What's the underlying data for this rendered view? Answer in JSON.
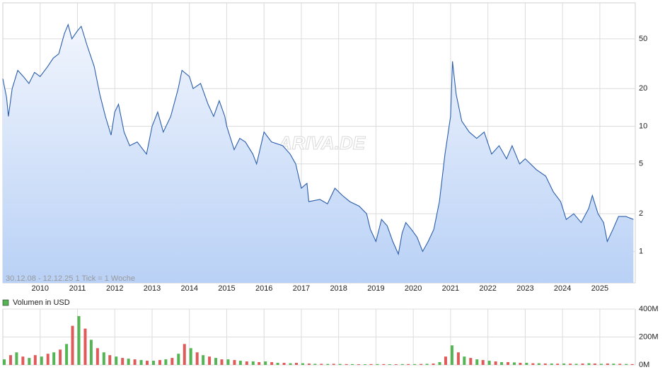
{
  "chart_data": [
    {
      "type": "area",
      "log_scale": true,
      "grid": true,
      "color": "#2b5eab",
      "fill_top": "#f1f5fd",
      "fill_bottom": "#b9d1f6",
      "footnote": "30.12.08 - 12.12.25   1 Tick = 1 Woche",
      "watermark": "ARIVA.DE",
      "xlim": [
        2009,
        2025.95
      ],
      "xticks": [
        2010,
        2011,
        2012,
        2013,
        2014,
        2015,
        2016,
        2017,
        2018,
        2019,
        2020,
        2021,
        2022,
        2023,
        2024,
        2025
      ],
      "ylim": [
        0.56,
        97
      ],
      "yticks": [
        1,
        2,
        5,
        10,
        20,
        50
      ],
      "x": [
        2009.0,
        2009.1,
        2009.15,
        2009.25,
        2009.4,
        2009.55,
        2009.7,
        2009.85,
        2010.0,
        2010.2,
        2010.35,
        2010.5,
        2010.65,
        2010.75,
        2010.85,
        2011.0,
        2011.1,
        2011.25,
        2011.45,
        2011.6,
        2011.75,
        2011.9,
        2012.0,
        2012.1,
        2012.25,
        2012.4,
        2012.6,
        2012.85,
        2013.0,
        2013.15,
        2013.3,
        2013.5,
        2013.7,
        2013.8,
        2014.0,
        2014.1,
        2014.3,
        2014.5,
        2014.65,
        2014.8,
        2014.95,
        2015.0,
        2015.2,
        2015.35,
        2015.5,
        2015.7,
        2015.8,
        2016.0,
        2016.2,
        2016.5,
        2016.7,
        2016.85,
        2017.0,
        2017.15,
        2017.2,
        2017.5,
        2017.7,
        2017.9,
        2018.1,
        2018.3,
        2018.55,
        2018.75,
        2018.85,
        2019.0,
        2019.15,
        2019.3,
        2019.45,
        2019.6,
        2019.7,
        2019.8,
        2019.95,
        2020.1,
        2020.25,
        2020.4,
        2020.55,
        2020.7,
        2020.85,
        2021.0,
        2021.05,
        2021.15,
        2021.3,
        2021.5,
        2021.7,
        2021.9,
        2022.1,
        2022.3,
        2022.5,
        2022.65,
        2022.85,
        2023.0,
        2023.3,
        2023.55,
        2023.75,
        2023.95,
        2024.1,
        2024.3,
        2024.5,
        2024.7,
        2024.8,
        2024.95,
        2025.1,
        2025.2,
        2025.35,
        2025.5,
        2025.7,
        2025.9
      ],
      "values": [
        24,
        17,
        12,
        20,
        28,
        25,
        22,
        27,
        25,
        30,
        35,
        38,
        55,
        65,
        50,
        58,
        63,
        45,
        30,
        18,
        12,
        8.5,
        13,
        15,
        9,
        7,
        7.5,
        6,
        10,
        13,
        9,
        12,
        20,
        28,
        25,
        20,
        22,
        15,
        12,
        16,
        12,
        10,
        6.5,
        8,
        7.5,
        6,
        5,
        9,
        7.5,
        7,
        6,
        5,
        3.2,
        3.5,
        2.5,
        2.6,
        2.4,
        3.2,
        2.8,
        2.5,
        2.3,
        2.0,
        1.5,
        1.2,
        1.8,
        1.6,
        1.2,
        0.95,
        1.4,
        1.7,
        1.5,
        1.3,
        1.0,
        1.2,
        1.5,
        2.5,
        6,
        12,
        33,
        18,
        11,
        9,
        8,
        9,
        6,
        7,
        5.5,
        7,
        5,
        5.5,
        4.5,
        4.0,
        3.0,
        2.5,
        1.8,
        2.0,
        1.7,
        2.2,
        2.8,
        2.0,
        1.7,
        1.2,
        1.5,
        1.9,
        1.9,
        1.8
      ]
    },
    {
      "type": "bar",
      "grid": true,
      "colors": [
        "#55b555",
        "#e05a5a"
      ],
      "xlim": [
        2009,
        2025.95
      ],
      "xticks": [
        2010,
        2011,
        2012,
        2013,
        2014,
        2015,
        2016,
        2017,
        2018,
        2019,
        2020,
        2021,
        2022,
        2023,
        2024,
        2025
      ],
      "ylim": [
        0,
        400
      ],
      "yticks": [
        {
          "value": 0,
          "label": "0M"
        },
        {
          "value": 200,
          "label": "200M"
        },
        {
          "value": 400,
          "label": "400M"
        }
      ],
      "x": [
        2009.0,
        2009.17,
        2009.33,
        2009.5,
        2009.67,
        2009.83,
        2010.0,
        2010.17,
        2010.33,
        2010.5,
        2010.67,
        2010.83,
        2011.0,
        2011.17,
        2011.33,
        2011.5,
        2011.67,
        2011.83,
        2012.0,
        2012.17,
        2012.33,
        2012.5,
        2012.67,
        2012.83,
        2013.0,
        2013.17,
        2013.33,
        2013.5,
        2013.67,
        2013.83,
        2014.0,
        2014.17,
        2014.33,
        2014.5,
        2014.67,
        2014.83,
        2015.0,
        2015.17,
        2015.33,
        2015.5,
        2015.67,
        2015.83,
        2016.0,
        2016.17,
        2016.33,
        2016.5,
        2016.67,
        2016.83,
        2017.0,
        2017.17,
        2017.33,
        2017.5,
        2017.67,
        2017.83,
        2018.0,
        2018.17,
        2018.33,
        2018.5,
        2018.67,
        2018.83,
        2019.0,
        2019.17,
        2019.33,
        2019.5,
        2019.67,
        2019.83,
        2020.0,
        2020.17,
        2020.33,
        2020.5,
        2020.67,
        2020.83,
        2021.0,
        2021.17,
        2021.33,
        2021.5,
        2021.67,
        2021.83,
        2022.0,
        2022.17,
        2022.33,
        2022.5,
        2022.67,
        2022.83,
        2023.0,
        2023.17,
        2023.33,
        2023.5,
        2023.67,
        2023.83,
        2024.0,
        2024.17,
        2024.33,
        2024.5,
        2024.67,
        2024.83,
        2025.0,
        2025.17,
        2025.33,
        2025.5,
        2025.67,
        2025.83
      ],
      "series": [
        {
          "name": "Volumen in USD",
          "color": "#55b555",
          "values": [
            40,
            70,
            90,
            60,
            50,
            70,
            60,
            80,
            90,
            110,
            150,
            280,
            350,
            260,
            180,
            120,
            90,
            70,
            60,
            50,
            45,
            40,
            35,
            30,
            30,
            35,
            40,
            50,
            80,
            150,
            120,
            90,
            70,
            60,
            50,
            40,
            40,
            35,
            30,
            25,
            25,
            20,
            25,
            20,
            15,
            15,
            12,
            15,
            12,
            10,
            8,
            8,
            7,
            8,
            7,
            6,
            6,
            5,
            5,
            6,
            6,
            6,
            5,
            5,
            6,
            6,
            6,
            7,
            8,
            10,
            20,
            60,
            140,
            90,
            60,
            50,
            40,
            35,
            30,
            25,
            20,
            20,
            18,
            15,
            15,
            12,
            12,
            10,
            10,
            9,
            10,
            9,
            8,
            10,
            12,
            10,
            8,
            10,
            9,
            8,
            7,
            6
          ]
        }
      ]
    }
  ]
}
